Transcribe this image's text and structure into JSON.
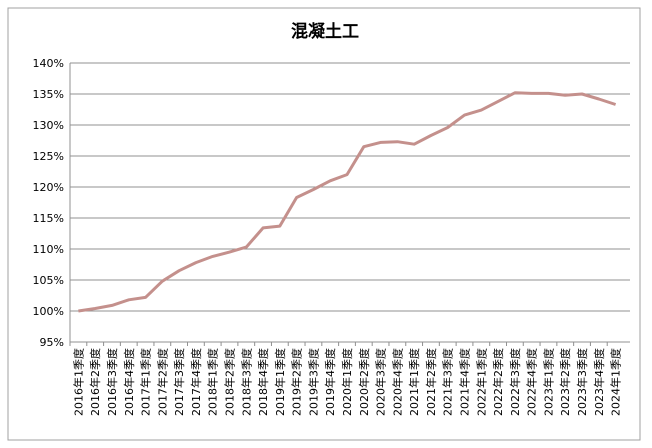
{
  "chart_data": {
    "type": "line",
    "title": "混凝土工",
    "categories": [
      "2016年1季度",
      "2016年2季度",
      "2016年3季度",
      "2016年4季度",
      "2017年1季度",
      "2017年2季度",
      "2017年3季度",
      "2017年4季度",
      "2018年1季度",
      "2018年2季度",
      "2018年3季度",
      "2018年4季度",
      "2019年1季度",
      "2019年2季度",
      "2019年3季度",
      "2019年4季度",
      "2020年1季度",
      "2020年2季度",
      "2020年3季度",
      "2020年4季度",
      "2021年1季度",
      "2021年2季度",
      "2021年3季度",
      "2021年4季度",
      "2022年1季度",
      "2022年2季度",
      "2022年3季度",
      "2022年4季度",
      "2023年1季度",
      "2023年2季度",
      "2023年3季度",
      "2023年4季度",
      "2024年1季度"
    ],
    "series": [
      {
        "name": "混凝土工",
        "color": "#c4908c",
        "values": [
          100.0,
          100.4,
          100.9,
          101.8,
          102.2,
          104.8,
          106.5,
          107.8,
          108.8,
          109.5,
          110.3,
          113.4,
          113.7,
          118.3,
          119.6,
          121.0,
          122.0,
          126.5,
          127.2,
          127.3,
          126.9,
          128.3,
          129.6,
          131.6,
          132.4,
          133.8,
          135.2,
          135.1,
          135.1,
          134.8,
          135.0,
          134.2,
          133.3
        ]
      }
    ],
    "ylim": [
      95,
      140
    ],
    "yticks": [
      {
        "value": 95,
        "label": "95%"
      },
      {
        "value": 100,
        "label": "100%"
      },
      {
        "value": 105,
        "label": "105%"
      },
      {
        "value": 110,
        "label": "110%"
      },
      {
        "value": 115,
        "label": "115%"
      },
      {
        "value": 120,
        "label": "120%"
      },
      {
        "value": 125,
        "label": "125%"
      },
      {
        "value": 130,
        "label": "130%"
      },
      {
        "value": 135,
        "label": "135%"
      },
      {
        "value": 140,
        "label": "140%"
      }
    ],
    "grid": true
  }
}
